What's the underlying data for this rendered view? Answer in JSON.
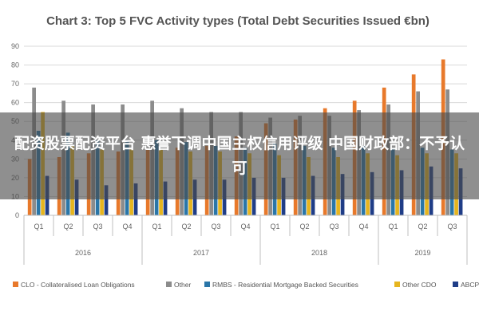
{
  "overlay_banner": {
    "text": "配资股票配资平台 惠誉下调中国主权信用评级 中国财政部：不予认可"
  },
  "chart_data": {
    "type": "bar",
    "title": "Chart 3: Top 5 FVC Activity types (Total Debt Securities Issued €bn)",
    "xlabel": "",
    "ylabel": "",
    "ylim": [
      0,
      90
    ],
    "yticks": [
      0,
      10,
      20,
      30,
      40,
      50,
      60,
      70,
      80,
      90
    ],
    "grid": true,
    "legend_position": "bottom",
    "categories": [
      "Q1",
      "Q2",
      "Q3",
      "Q4",
      "Q1",
      "Q2",
      "Q3",
      "Q4",
      "Q1",
      "Q2",
      "Q3",
      "Q4",
      "Q1",
      "Q2",
      "Q3"
    ],
    "groups": [
      {
        "label": "2016",
        "count": 4
      },
      {
        "label": "2017",
        "count": 4
      },
      {
        "label": "2018",
        "count": 4
      },
      {
        "label": "2019",
        "count": 3
      }
    ],
    "series": [
      {
        "name": "CLO - Collateralised Loan Obligations",
        "color": "#e8792b",
        "values": [
          30,
          31,
          33,
          34,
          35,
          36,
          37,
          42,
          49,
          51,
          57,
          61,
          68,
          75,
          83
        ]
      },
      {
        "name": "Other",
        "color": "#8c8c8c",
        "values": [
          68,
          61,
          59,
          59,
          61,
          57,
          55,
          55,
          52,
          53,
          53,
          56,
          59,
          66,
          67
        ]
      },
      {
        "name": "RMBS - Residential Mortgage Backed Securities",
        "color": "#2a76a8",
        "values": [
          45,
          44,
          40,
          40,
          40,
          39,
          37,
          36,
          38,
          37,
          36,
          37,
          36,
          36,
          35
        ]
      },
      {
        "name": "Other CDO",
        "color": "#e6b51f",
        "values": [
          55,
          37,
          35,
          35,
          35,
          34,
          34,
          33,
          32,
          31,
          31,
          33,
          32,
          33,
          33
        ]
      },
      {
        "name": "ABCP",
        "color": "#1f3d87",
        "values": [
          21,
          19,
          16,
          17,
          18,
          19,
          19,
          20,
          20,
          21,
          22,
          23,
          24,
          26,
          25
        ]
      }
    ]
  }
}
